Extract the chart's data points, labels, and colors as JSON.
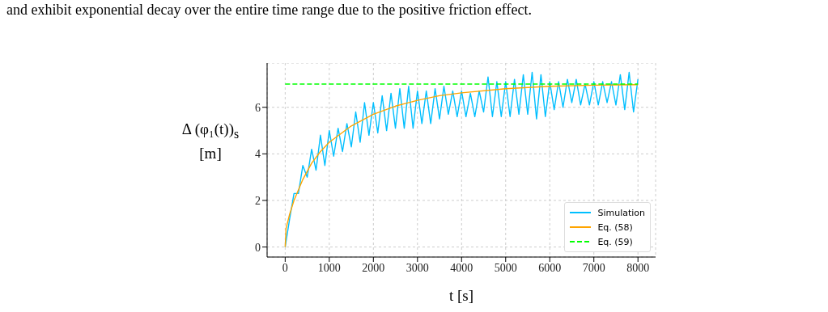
{
  "chart_data": {
    "type": "line",
    "xlabel": "t [s]",
    "ylabel": "Δ (φ₁(t))$_{s}$ [m]",
    "annotations": [
      "and exhibit exponential decay over the entire time range due to the positive friction effect."
    ],
    "xlim": [
      -410,
      8400
    ],
    "ylim": [
      -0.43,
      7.9
    ],
    "xticks": [
      0,
      1000,
      2000,
      3000,
      4000,
      5000,
      6000,
      7000,
      8000
    ],
    "yticks": [
      0,
      2,
      4,
      6
    ],
    "grid": true,
    "legend": "bottom right",
    "marker": "none",
    "series": [
      {
        "name": "Simulation",
        "color": "#00bfff",
        "x": [
          0,
          100,
          200,
          300,
          400,
          500,
          600,
          700,
          800,
          900,
          1000,
          1100,
          1200,
          1300,
          1400,
          1500,
          1600,
          1700,
          1800,
          1900,
          2000,
          2100,
          2200,
          2300,
          2400,
          2500,
          2600,
          2700,
          2800,
          2900,
          3000,
          3100,
          3200,
          3300,
          3400,
          3500,
          3600,
          3700,
          3800,
          3900,
          4000,
          4100,
          4200,
          4300,
          4400,
          4500,
          4600,
          4700,
          4800,
          4900,
          5000,
          5100,
          5200,
          5300,
          5400,
          5500,
          5600,
          5700,
          5800,
          5900,
          6000,
          6100,
          6200,
          6300,
          6400,
          6500,
          6600,
          6700,
          6800,
          6900,
          7000,
          7100,
          7200,
          7300,
          7400,
          7500,
          7600,
          7700,
          7800,
          7900,
          8000
        ],
        "values": [
          0,
          1.2,
          2.3,
          2.3,
          3.5,
          3.0,
          4.2,
          3.3,
          4.8,
          3.5,
          5.0,
          3.9,
          5.1,
          4.1,
          5.3,
          4.3,
          5.8,
          4.5,
          6.2,
          4.8,
          6.2,
          4.9,
          6.5,
          5.0,
          6.6,
          5.1,
          6.8,
          5.1,
          6.9,
          5.1,
          6.7,
          5.3,
          6.7,
          5.3,
          6.8,
          5.5,
          6.9,
          5.7,
          6.7,
          5.6,
          6.7,
          5.6,
          6.6,
          5.6,
          6.7,
          5.8,
          7.3,
          5.6,
          7.1,
          5.6,
          7.1,
          5.6,
          7.2,
          5.7,
          7.4,
          5.7,
          7.5,
          5.5,
          7.4,
          5.6,
          7.1,
          5.9,
          7.1,
          6.0,
          7.2,
          6.2,
          7.2,
          6.1,
          7.0,
          6.1,
          7.1,
          6.1,
          7.1,
          6.2,
          7.1,
          6.1,
          7.4,
          5.9,
          7.5,
          5.8,
          7.2
        ]
      },
      {
        "name": "Eq. (58)",
        "color": "#ffa500",
        "x": [
          0,
          20,
          100,
          200,
          400,
          600,
          800,
          1000,
          1500,
          2000,
          2500,
          3000,
          3500,
          4000,
          5000,
          6000,
          7000,
          8000
        ],
        "values": [
          0,
          0.8,
          1.4,
          2.0,
          2.9,
          3.6,
          4.1,
          4.5,
          5.2,
          5.7,
          6.05,
          6.3,
          6.5,
          6.62,
          6.8,
          6.9,
          6.95,
          6.97
        ]
      },
      {
        "name": "Eq. (59)",
        "color": "#00ff00",
        "line_style": "dashed",
        "x": [
          0,
          8000
        ],
        "values": [
          7,
          7
        ]
      }
    ]
  }
}
